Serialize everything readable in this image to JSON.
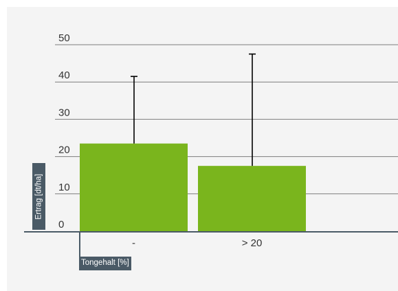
{
  "chart_data": {
    "type": "bar",
    "categories": [
      "-",
      "> 20"
    ],
    "values": [
      23.5,
      17.5
    ],
    "error_upper": [
      41.5,
      47.5
    ],
    "ylim": [
      0,
      50
    ],
    "yticks": [
      0,
      10,
      20,
      30,
      40,
      50
    ],
    "xlabel": "Tongehalt [%]",
    "ylabel": "Ertrag [dt/ha]",
    "grid": true,
    "colors": {
      "bar": "#7ab51d",
      "grid": "#7d7d7d",
      "error_bar": "#000000",
      "label_tag_bg": "#4a5a66"
    }
  }
}
